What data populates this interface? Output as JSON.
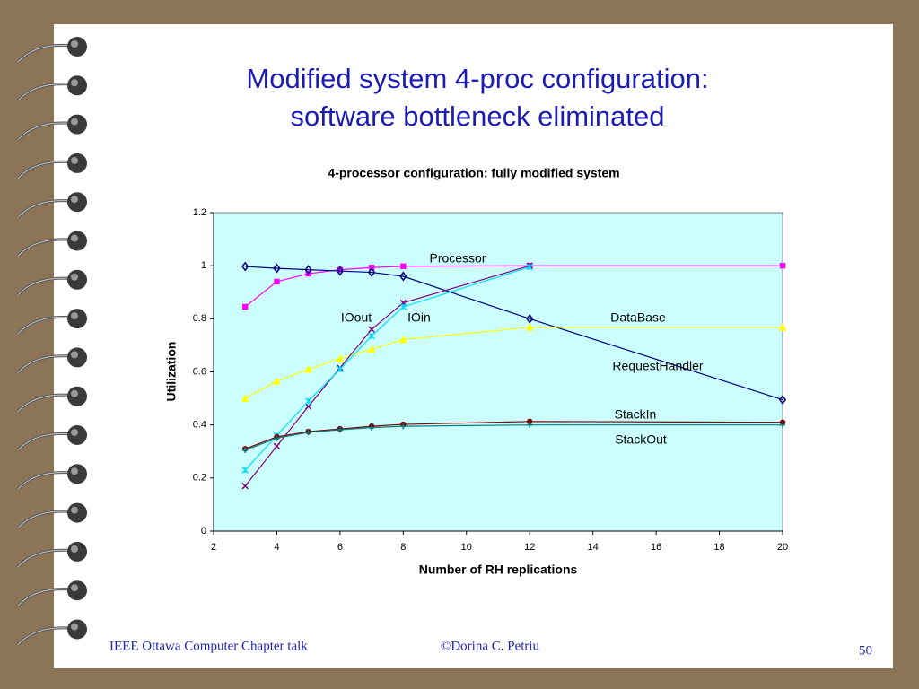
{
  "slide": {
    "title_line1": "Modified system 4-proc configuration:",
    "title_line2": "software bottleneck eliminated",
    "footer_left": "IEEE Ottawa Computer Chapter talk",
    "footer_center": "©Dorina C. Petriu",
    "page_number": "50"
  },
  "chart_data": {
    "type": "line",
    "title": "4-processor configuration: fully modified system",
    "x_label": "Number of RH replications",
    "y_label": "Utilization",
    "x": [
      3,
      4,
      5,
      6,
      7,
      8,
      12,
      20
    ],
    "xlim": [
      2,
      20
    ],
    "xticks": [
      2,
      4,
      6,
      8,
      10,
      12,
      14,
      16,
      18,
      20
    ],
    "ylim": [
      0,
      1.2
    ],
    "yticks": [
      0,
      0.2,
      0.4,
      0.6,
      0.8,
      1,
      1.2
    ],
    "series": [
      {
        "name": "Processor",
        "color": "#ff00ff",
        "values": [
          0.845,
          0.94,
          0.97,
          0.985,
          0.993,
          0.998,
          1.0,
          1.0
        ]
      },
      {
        "name": "DataBase",
        "color": "#000080",
        "values": [
          0.997,
          0.99,
          0.985,
          0.98,
          0.975,
          0.96,
          0.8,
          0.495
        ]
      },
      {
        "name": "RequestHandler",
        "color": "#ffff00",
        "values": [
          0.5,
          0.565,
          0.61,
          0.65,
          0.685,
          0.722,
          0.768,
          0.768
        ]
      },
      {
        "name": "IOout",
        "color": "#800080",
        "values": [
          0.17,
          0.32,
          0.47,
          0.615,
          0.76,
          0.86,
          1.0,
          null
        ]
      },
      {
        "name": "IOin",
        "color": "#00e0ff",
        "values": [
          0.23,
          0.36,
          0.49,
          0.61,
          0.735,
          0.845,
          0.995,
          null
        ]
      },
      {
        "name": "StackIn",
        "color": "#800000",
        "values": [
          0.31,
          0.355,
          0.375,
          0.385,
          0.395,
          0.402,
          0.413,
          0.41
        ]
      },
      {
        "name": "StackOut",
        "color": "#008080",
        "values": [
          0.305,
          0.35,
          0.372,
          0.382,
          0.39,
          0.395,
          0.4,
          0.4
        ]
      }
    ]
  }
}
